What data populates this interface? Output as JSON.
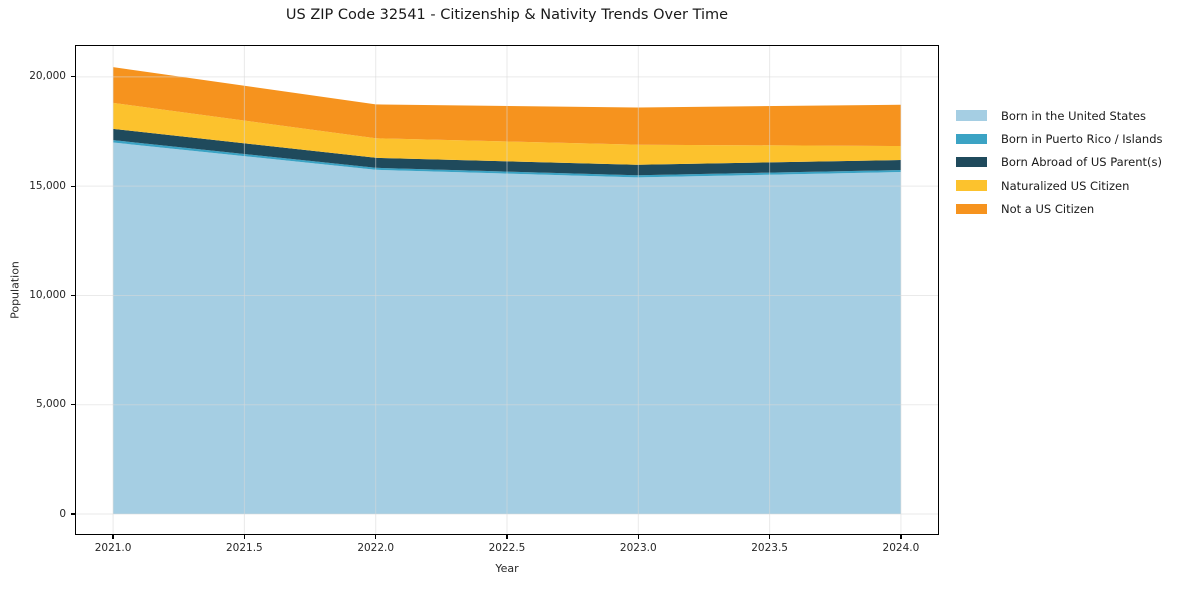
{
  "title": "US ZIP Code 32541 - Citizenship & Nativity Trends Over Time",
  "chart_data": {
    "type": "area",
    "stacked": true,
    "title": "US ZIP Code 32541 - Citizenship & Nativity Trends Over Time",
    "xlabel": "Year",
    "ylabel": "Population",
    "x": [
      2021,
      2022,
      2023,
      2024
    ],
    "series": [
      {
        "name": "Born in the United States",
        "color": "#A5CEE3",
        "values": [
          17000,
          15750,
          15400,
          15650
        ]
      },
      {
        "name": "Born in Puerto Rico / Islands",
        "color": "#3BA3C4",
        "values": [
          110,
          90,
          100,
          90
        ]
      },
      {
        "name": "Born Abroad of US Parent(s)",
        "color": "#1F4A5C",
        "values": [
          510,
          460,
          480,
          460
        ]
      },
      {
        "name": "Naturalized US Citizen",
        "color": "#FCC22D",
        "values": [
          1190,
          890,
          920,
          640
        ]
      },
      {
        "name": "Not a US Citizen",
        "color": "#F6931E",
        "values": [
          1640,
          1550,
          1700,
          1890
        ]
      }
    ],
    "stack_totals": [
      20450,
      18740,
      18600,
      18730
    ],
    "xticks": [
      2021.0,
      2021.5,
      2022.0,
      2022.5,
      2023.0,
      2023.5,
      2024.0
    ],
    "xtick_labels": [
      "2021.0",
      "2021.5",
      "2022.0",
      "2022.5",
      "2023.0",
      "2023.5",
      "2024.0"
    ],
    "yticks": [
      0,
      5000,
      10000,
      15000,
      20000
    ],
    "ytick_labels": [
      "0",
      "5,000",
      "10,000",
      "15,000",
      "20,000"
    ],
    "xlim": [
      2020.855,
      2024.145
    ],
    "ylim": [
      -960,
      21460
    ],
    "grid": true,
    "grid_color": "#d9d9d9",
    "legend_position": "right"
  }
}
